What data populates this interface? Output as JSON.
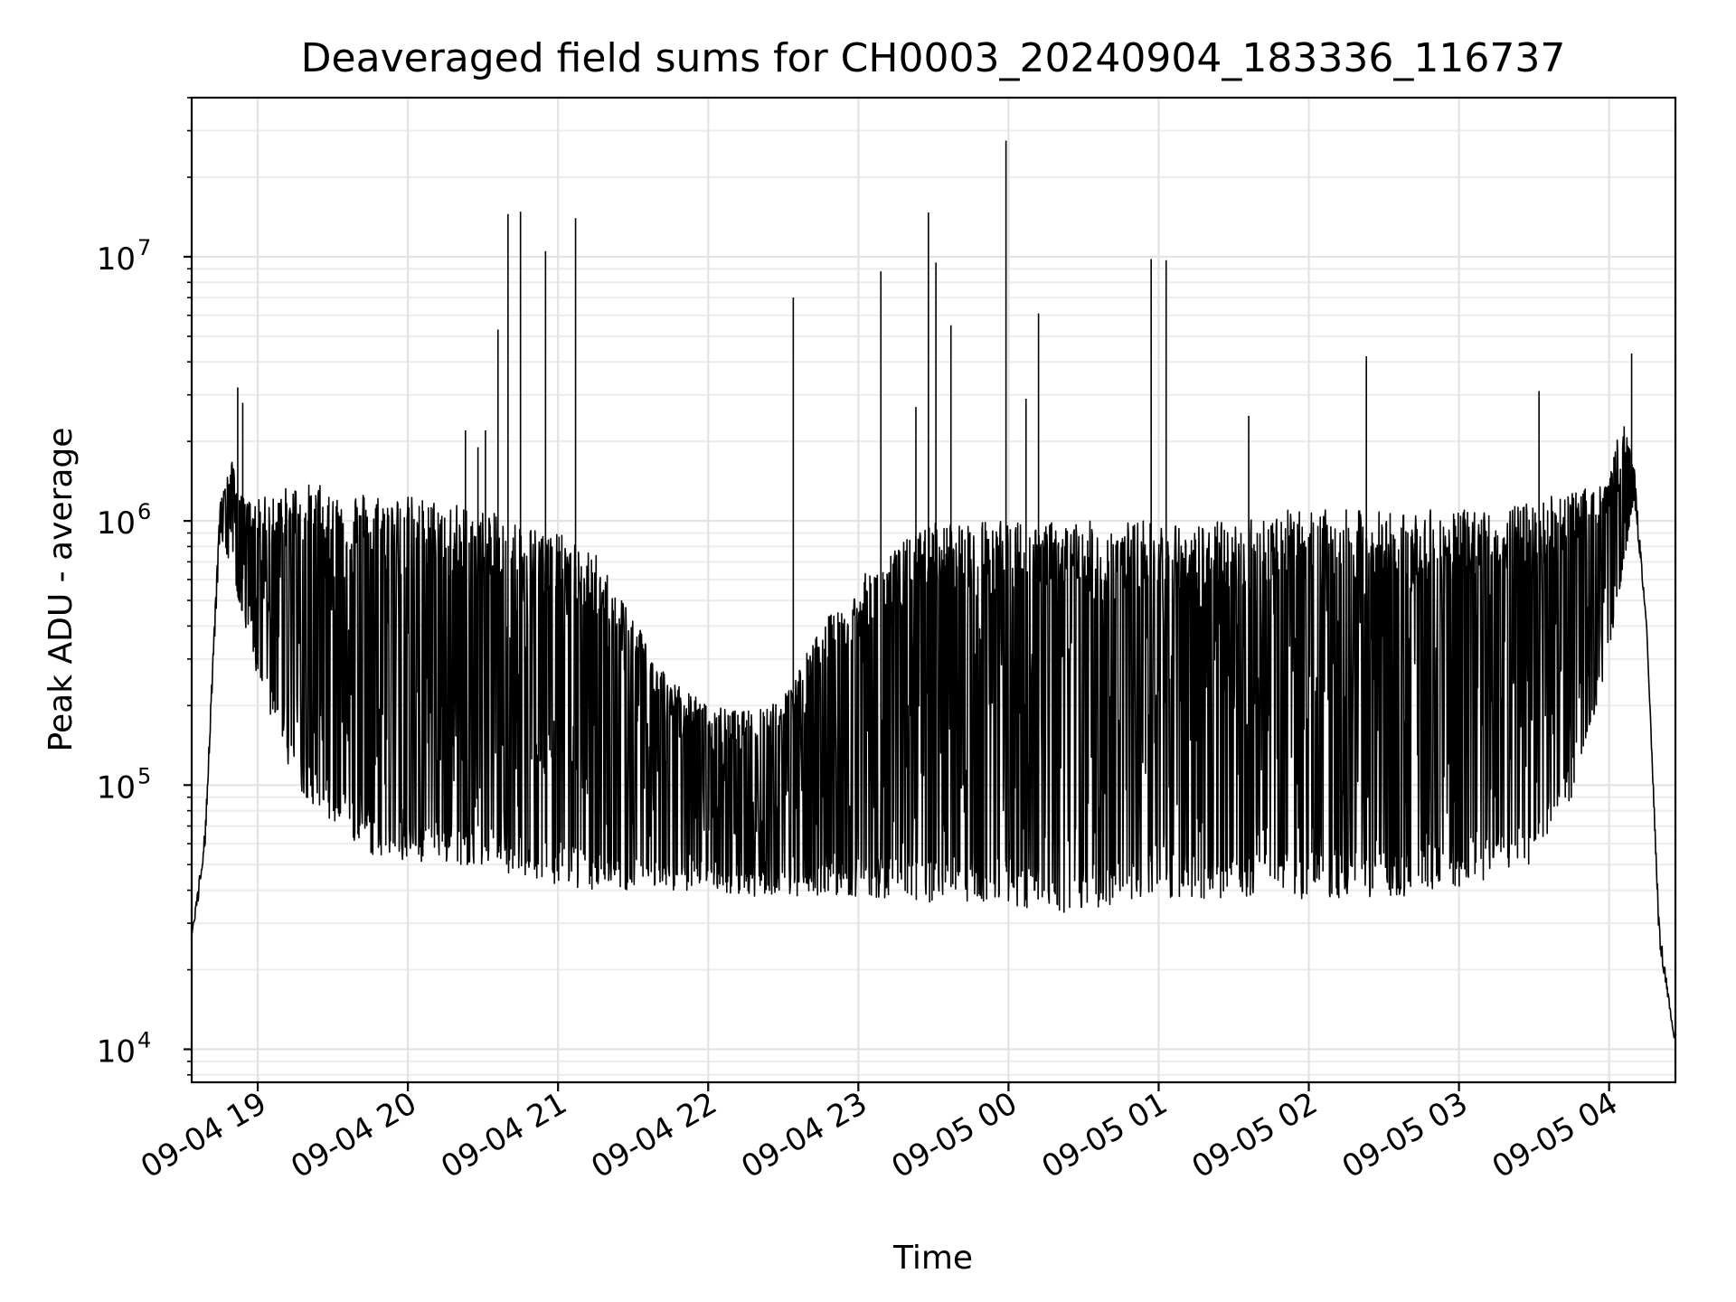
{
  "chart_data": {
    "type": "line",
    "title": "Deaveraged field sums for CH0003_20240904_183336_116737",
    "xlabel": "Time",
    "ylabel": "Peak ADU - average",
    "yscale": "log",
    "ylim": [
      7500,
      40000000
    ],
    "xlim": [
      "2024-09-04 18:33:36",
      "2024-09-05 04:26:30"
    ],
    "x_ticks": [
      "2024-09-04 19:00",
      "2024-09-04 20:00",
      "2024-09-04 21:00",
      "2024-09-04 22:00",
      "2024-09-04 23:00",
      "2024-09-05 00:00",
      "2024-09-05 01:00",
      "2024-09-05 02:00",
      "2024-09-05 03:00",
      "2024-09-05 04:00"
    ],
    "x_tick_labels": [
      "09-04 19",
      "09-04 20",
      "09-04 21",
      "09-04 22",
      "09-04 23",
      "09-05 00",
      "09-05 01",
      "09-05 02",
      "09-05 03",
      "09-05 04"
    ],
    "y_ticks": [
      10000,
      100000,
      1000000,
      10000000
    ],
    "y_tick_labels": [
      {
        "base": "10",
        "exp": "4"
      },
      {
        "base": "10",
        "exp": "5"
      },
      {
        "base": "10",
        "exp": "6"
      },
      {
        "base": "10",
        "exp": "7"
      }
    ],
    "grid": true,
    "line_color": "#000000",
    "series": [
      {
        "name": "",
        "time": [
          "2024-09-04 18:33:36",
          "2024-09-04 18:36:00",
          "2024-09-04 18:39:00",
          "2024-09-04 18:42:00",
          "2024-09-04 18:45:00",
          "2024-09-04 18:48:00",
          "2024-09-04 18:50:00",
          "2024-09-04 18:52:00",
          "2024-09-04 18:55:00",
          "2024-09-04 19:00:00",
          "2024-09-04 19:15:00",
          "2024-09-04 19:30:00",
          "2024-09-04 19:45:00",
          "2024-09-04 20:00:00",
          "2024-09-04 20:15:00",
          "2024-09-04 20:30:00",
          "2024-09-04 20:45:00",
          "2024-09-04 21:00:00",
          "2024-09-04 21:15:00",
          "2024-09-04 21:30:00",
          "2024-09-04 21:45:00",
          "2024-09-04 22:00:00",
          "2024-09-04 22:15:00",
          "2024-09-04 22:30:00",
          "2024-09-04 22:45:00",
          "2024-09-04 23:00:00",
          "2024-09-04 23:15:00",
          "2024-09-04 23:30:00",
          "2024-09-04 23:45:00",
          "2024-09-05 00:00:00",
          "2024-09-05 00:15:00",
          "2024-09-05 00:30:00",
          "2024-09-05 00:45:00",
          "2024-09-05 01:00:00",
          "2024-09-05 01:15:00",
          "2024-09-05 01:30:00",
          "2024-09-05 01:45:00",
          "2024-09-05 02:00:00",
          "2024-09-05 02:15:00",
          "2024-09-05 02:30:00",
          "2024-09-05 02:45:00",
          "2024-09-05 03:00:00",
          "2024-09-05 03:15:00",
          "2024-09-05 03:30:00",
          "2024-09-05 03:45:00",
          "2024-09-05 04:00:00",
          "2024-09-05 04:05:00",
          "2024-09-05 04:10:00",
          "2024-09-05 04:15:00",
          "2024-09-05 04:20:00",
          "2024-09-05 04:26:00"
        ],
        "upper": [
          27000,
          40000,
          70000,
          300000,
          1200000,
          1500000,
          1700000,
          1300000,
          1200000,
          1200000,
          1400000,
          1350000,
          1300000,
          1250000,
          1200000,
          1100000,
          1000000,
          900000,
          750000,
          450000,
          250000,
          200000,
          190000,
          220000,
          400000,
          600000,
          800000,
          1000000,
          1000000,
          1000000,
          1000000,
          1000000,
          1000000,
          1000000,
          1000000,
          1000000,
          1100000,
          1100000,
          1100000,
          1100000,
          1100000,
          1100000,
          1100000,
          1200000,
          1300000,
          1400000,
          2500000,
          1600000,
          400000,
          30000,
          11000
        ],
        "lower": [
          27000,
          35000,
          60000,
          250000,
          900000,
          700000,
          700000,
          500000,
          400000,
          250000,
          100000,
          70000,
          55000,
          50000,
          50000,
          50000,
          45000,
          42000,
          40000,
          40000,
          40000,
          40000,
          38000,
          38000,
          38000,
          38000,
          37000,
          36000,
          36000,
          35000,
          33000,
          33000,
          35000,
          37000,
          37000,
          37000,
          38000,
          37000,
          37000,
          37000,
          38000,
          40000,
          45000,
          50000,
          90000,
          300000,
          600000,
          1200000,
          400000,
          25000,
          11000
        ],
        "spikes": [
          {
            "time": "2024-09-04 18:52:00",
            "value": 3200000
          },
          {
            "time": "2024-09-04 18:54:00",
            "value": 2800000
          },
          {
            "time": "2024-09-04 20:23:00",
            "value": 2200000
          },
          {
            "time": "2024-09-04 20:28:00",
            "value": 1900000
          },
          {
            "time": "2024-09-04 20:31:00",
            "value": 2200000
          },
          {
            "time": "2024-09-04 20:36:00",
            "value": 5300000
          },
          {
            "time": "2024-09-04 20:40:00",
            "value": 14500000
          },
          {
            "time": "2024-09-04 20:45:00",
            "value": 14800000
          },
          {
            "time": "2024-09-04 20:55:00",
            "value": 10500000
          },
          {
            "time": "2024-09-04 21:07:00",
            "value": 14000000
          },
          {
            "time": "2024-09-04 22:34:00",
            "value": 7000000
          },
          {
            "time": "2024-09-04 23:09:00",
            "value": 8800000
          },
          {
            "time": "2024-09-04 23:23:00",
            "value": 2700000
          },
          {
            "time": "2024-09-04 23:28:00",
            "value": 14700000
          },
          {
            "time": "2024-09-04 23:31:00",
            "value": 9500000
          },
          {
            "time": "2024-09-04 23:37:00",
            "value": 5500000
          },
          {
            "time": "2024-09-04 23:59:00",
            "value": 27500000
          },
          {
            "time": "2024-09-05 00:07:00",
            "value": 2900000
          },
          {
            "time": "2024-09-05 00:12:00",
            "value": 6100000
          },
          {
            "time": "2024-09-05 00:57:00",
            "value": 9800000
          },
          {
            "time": "2024-09-05 01:03:00",
            "value": 9700000
          },
          {
            "time": "2024-09-05 01:36:00",
            "value": 2500000
          },
          {
            "time": "2024-09-05 02:23:00",
            "value": 4200000
          },
          {
            "time": "2024-09-05 03:32:00",
            "value": 3100000
          },
          {
            "time": "2024-09-05 04:09:00",
            "value": 4300000
          }
        ]
      }
    ]
  }
}
